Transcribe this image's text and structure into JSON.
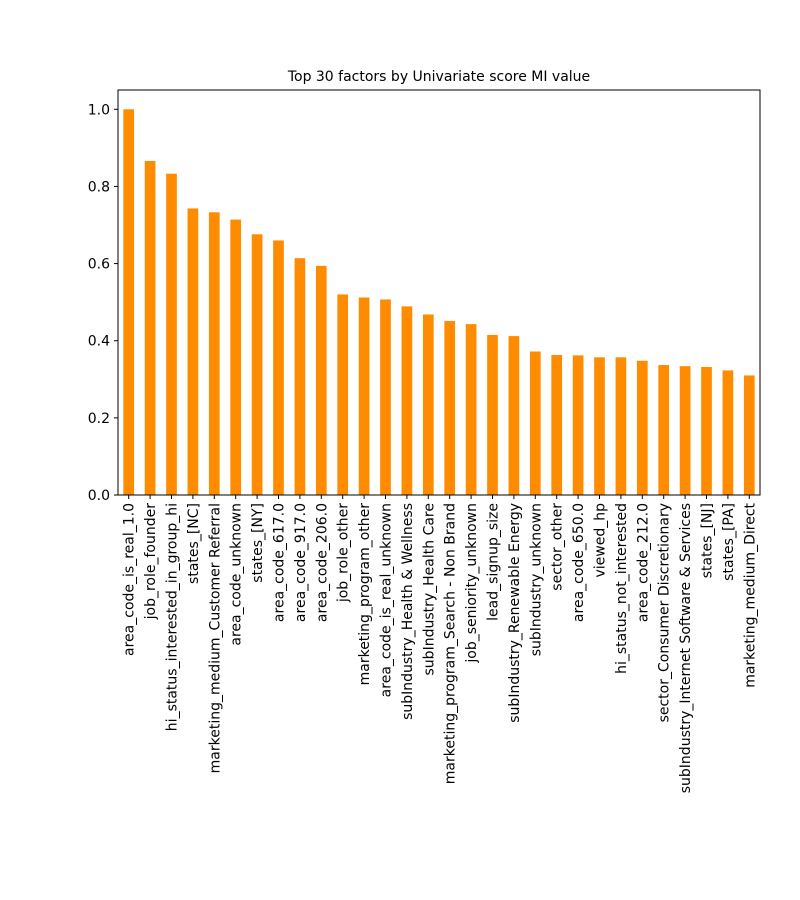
{
  "chart_data": {
    "type": "bar",
    "title": "Top 30 factors by Univariate score MI value",
    "xlabel": "",
    "ylabel": "",
    "ylim": [
      0,
      1.05
    ],
    "yticks": [
      "0.0",
      "0.2",
      "0.4",
      "0.6",
      "0.8",
      "1.0"
    ],
    "bar_color": "#ff8c00",
    "grid": false,
    "legend": "none",
    "categories": [
      "area_code_is_real_1.0",
      "job_role_founder",
      "hi_status_interested_in_group_hi",
      "states_[NC]",
      "marketing_medium_Customer Referral",
      "area_code_unknown",
      "states_[NY]",
      "area_code_617.0",
      "area_code_917.0",
      "area_code_206.0",
      "job_role_other",
      "marketing_program_other",
      "area_code_is_real_unknown",
      "subIndustry_Health & Wellness",
      "subIndustry_Health Care",
      "marketing_program_Search - Non Brand",
      "job_seniority_unknown",
      "lead_signup_size",
      "subIndustry_Renewable Energy",
      "subIndustry_unknown",
      "sector_other",
      "area_code_650.0",
      "viewed_hp",
      "hi_status_not_interested",
      "area_code_212.0",
      "sector_Consumer Discretionary",
      "subIndustry_Internet Software & Services",
      "states_[NJ]",
      "states_[PA]",
      "marketing_medium_Direct"
    ],
    "values": [
      1.0,
      0.866,
      0.833,
      0.743,
      0.733,
      0.714,
      0.676,
      0.66,
      0.614,
      0.594,
      0.52,
      0.512,
      0.507,
      0.489,
      0.468,
      0.451,
      0.443,
      0.415,
      0.412,
      0.372,
      0.363,
      0.362,
      0.357,
      0.357,
      0.348,
      0.337,
      0.334,
      0.332,
      0.323,
      0.31
    ]
  }
}
